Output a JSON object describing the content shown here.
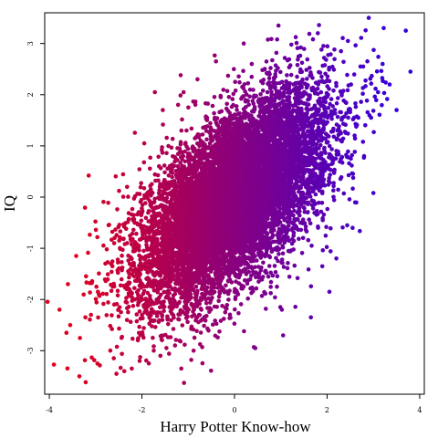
{
  "chart_data": {
    "type": "scatter",
    "title": "",
    "xlabel": "Harry Potter Know-how",
    "ylabel": "IQ",
    "xlim": [
      -4.1,
      4.1
    ],
    "ylim": [
      -3.85,
      3.6
    ],
    "x_ticks": [
      -4,
      -2,
      0,
      2,
      4
    ],
    "y_ticks": [
      -3,
      -2,
      -1,
      0,
      1,
      2,
      3
    ],
    "x_tick_labels": [
      "-4",
      "-2",
      "0",
      "2",
      "4"
    ],
    "y_tick_labels": [
      "-3",
      "-2",
      "-1",
      "0",
      "1",
      "2",
      "3"
    ],
    "grid": false,
    "legend": "none",
    "color_gradient": {
      "low_x_color": "#e0001c",
      "high_x_color": "#3300e0"
    },
    "sample": {
      "n": 10000,
      "correlation": 0.6,
      "x_sd": 1.0,
      "y_sd": 1.0
    },
    "series": [
      {
        "name": "",
        "points": [
          [
            -3.9,
            -3.27
          ],
          [
            -3.35,
            -3.5
          ],
          [
            -2.55,
            -3.45
          ],
          [
            -3.78,
            -2.2
          ],
          [
            -3.63,
            -2.65
          ],
          [
            -3.6,
            -1.7
          ],
          [
            -3.55,
            -2.5
          ],
          [
            -3.42,
            -1.15
          ],
          [
            -3.22,
            -2.35
          ],
          [
            -3.15,
            0.42
          ],
          [
            -3.1,
            -2.3
          ],
          [
            -2.95,
            -1.85
          ],
          [
            -2.72,
            -0.55
          ],
          [
            -2.6,
            -0.9
          ],
          [
            -2.44,
            -2.75
          ],
          [
            -2.32,
            0.2
          ],
          [
            -2.22,
            -3.35
          ],
          [
            -2.05,
            -3.2
          ],
          [
            -1.95,
            1.05
          ],
          [
            -1.85,
            -3.25
          ],
          [
            -1.72,
            2.05
          ],
          [
            -1.6,
            -3.1
          ],
          [
            -1.55,
            1.7
          ],
          [
            -1.15,
            -3.35
          ],
          [
            -1.1,
            2.05
          ],
          [
            -0.8,
            2.3
          ],
          [
            -0.4,
            2.65
          ],
          [
            0.2,
            3.0
          ],
          [
            0.45,
            -2.95
          ],
          [
            0.95,
            3.35
          ],
          [
            1.05,
            -2.7
          ],
          [
            1.35,
            2.35
          ],
          [
            1.65,
            -2.35
          ],
          [
            1.8,
            3.2
          ],
          [
            2.05,
            -1.85
          ],
          [
            2.3,
            2.85
          ],
          [
            2.2,
            -1.2
          ],
          [
            2.45,
            3.05
          ],
          [
            2.55,
            -0.6
          ],
          [
            2.72,
            2.55
          ],
          [
            2.8,
            0.8
          ],
          [
            2.9,
            3.5
          ],
          [
            2.95,
            1.55
          ],
          [
            3.0,
            0.08
          ],
          [
            3.1,
            2.05
          ],
          [
            3.2,
            2.6
          ],
          [
            3.5,
            1.7
          ],
          [
            3.7,
            3.25
          ],
          [
            3.8,
            2.45
          ],
          [
            3.35,
            2.2
          ]
        ]
      }
    ]
  }
}
